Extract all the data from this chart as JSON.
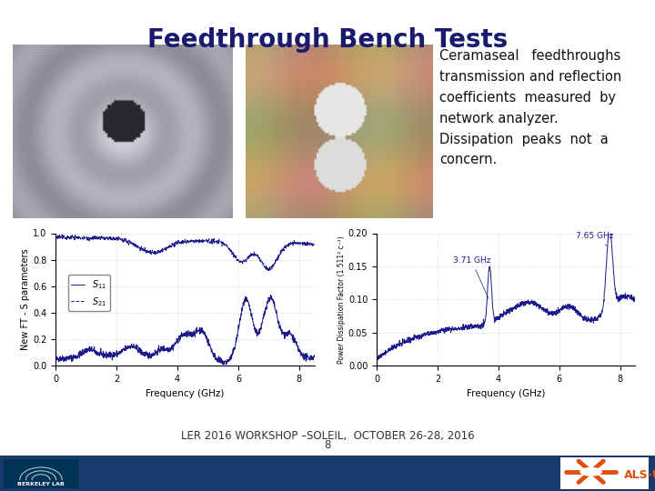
{
  "title": "Feedthrough Bench Tests",
  "title_fontsize": 20,
  "title_fontweight": "bold",
  "title_color": "#1a1a6e",
  "bg_color": "#ffffff",
  "text_line1": "Ceramaseal   feedthroughs",
  "text_line2": "transmission and reflection",
  "text_line3": "coefficients  measured  by",
  "text_line4": "network analyzer.",
  "text_line5": "Dissipation  peaks  not  a",
  "text_line6": "concern.",
  "text_fontsize": 10.5,
  "footer_line1": "LER 2016 WORKSHOP –SOLEIL,  OCTOBER 26-28, 2016",
  "footer_line2": "8",
  "footer_fontsize": 8.5,
  "bottom_bar_color": "#1a3a6e",
  "chart1_ylabel": "New FT - S parameters",
  "chart1_xlabel": "Frequency (GHz)",
  "chart1_ylim": [
    0.0,
    1.0
  ],
  "chart1_xlim": [
    0,
    8.5
  ],
  "chart2_ylabel": "Power Dissipation Factor (1.511² c⁻¹)",
  "chart2_xlabel": "Frequency (GHz)",
  "chart2_ylim": [
    0.0,
    0.2
  ],
  "chart2_xlim": [
    0,
    8.5
  ],
  "annotation1": "3.71 GHz",
  "annotation2": "7.65 GHz",
  "line_color": "#1a1a8c",
  "berkeley_lab_color": "#003366",
  "als_color": "#e05010"
}
